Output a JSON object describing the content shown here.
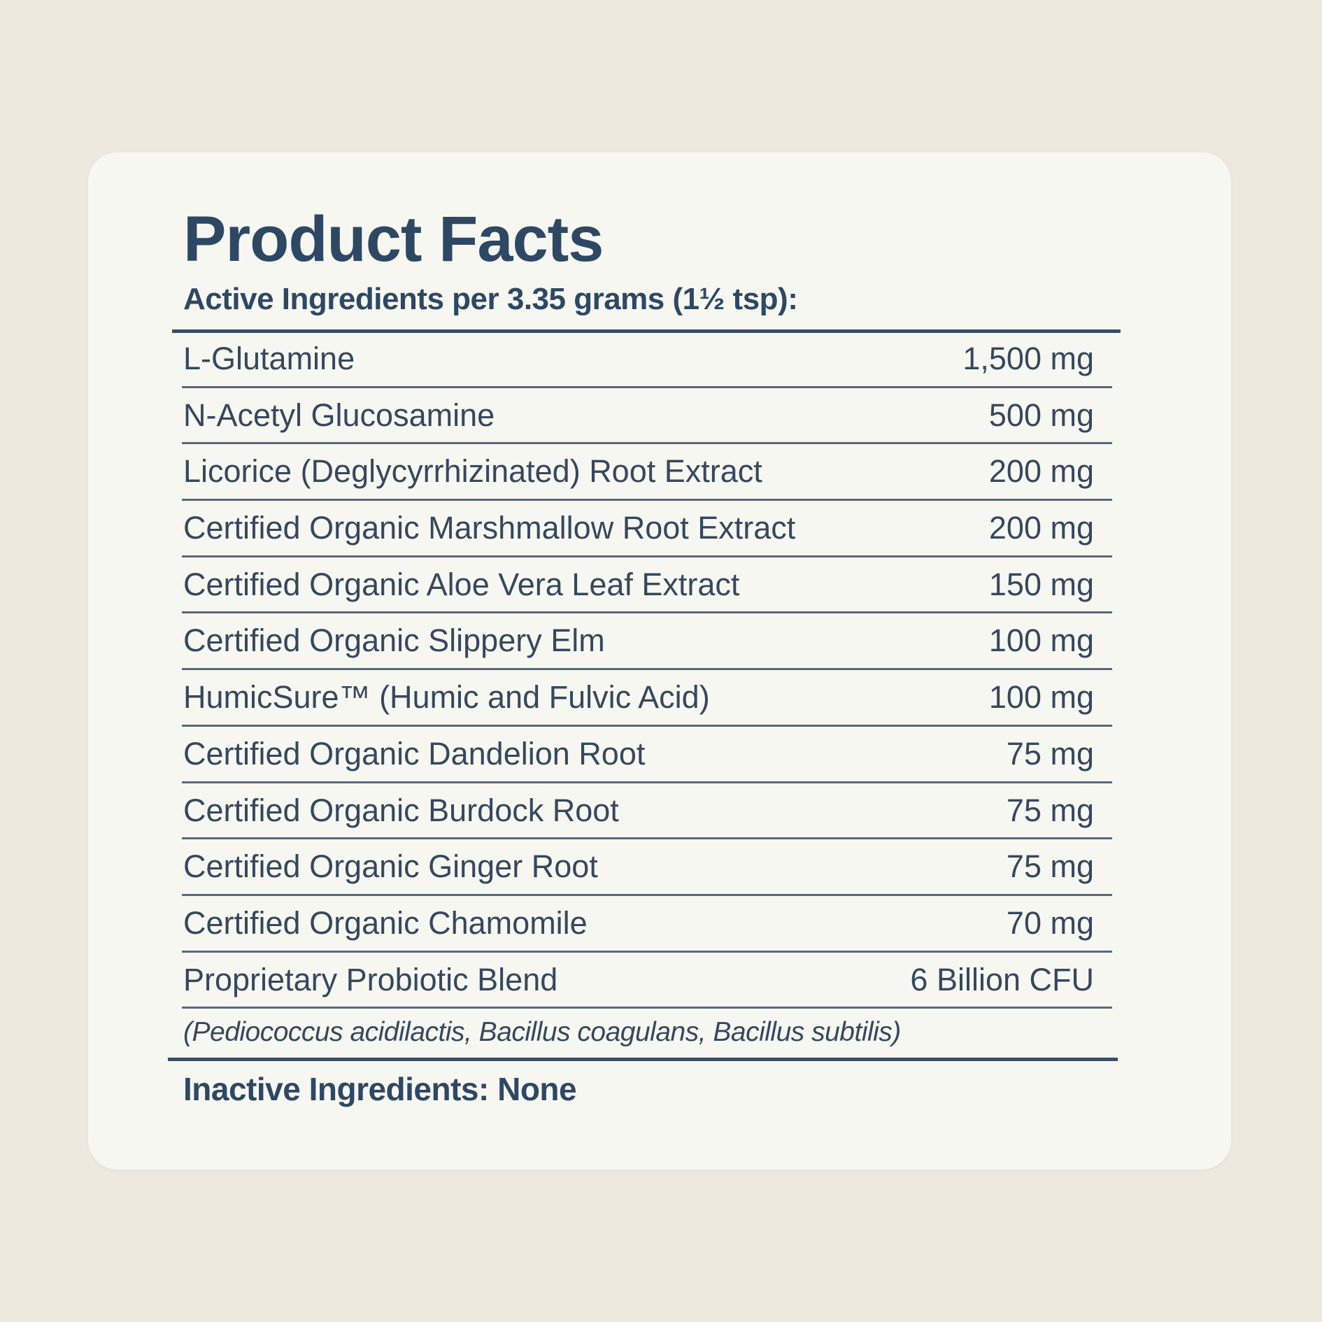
{
  "colors": {
    "background": "#ede9df",
    "card": "#f7f7f2",
    "text": "#2e4864"
  },
  "label": {
    "title": "Product Facts",
    "subtitle": "Active Ingredients per 3.35 grams (1½ tsp):",
    "ingredients": [
      {
        "name": "L-Glutamine",
        "amount": "1,500 mg"
      },
      {
        "name": "N-Acetyl Glucosamine",
        "amount": "500 mg"
      },
      {
        "name": "Licorice (Deglycyrrhizinated) Root Extract",
        "amount": "200 mg"
      },
      {
        "name": "Certified Organic Marshmallow Root Extract",
        "amount": "200 mg"
      },
      {
        "name": "Certified Organic Aloe Vera Leaf Extract",
        "amount": "150 mg"
      },
      {
        "name": "Certified Organic Slippery Elm",
        "amount": "100 mg"
      },
      {
        "name": "HumicSure™ (Humic and Fulvic Acid)",
        "amount": "100 mg"
      },
      {
        "name": "Certified Organic Dandelion Root",
        "amount": "75 mg"
      },
      {
        "name": "Certified Organic Burdock Root",
        "amount": "75 mg"
      },
      {
        "name": "Certified Organic Ginger Root",
        "amount": "75 mg"
      },
      {
        "name": "Certified Organic Chamomile",
        "amount": "70 mg"
      },
      {
        "name": "Proprietary Probiotic Blend",
        "amount": "6  Billion CFU"
      }
    ],
    "probiotic_note": "(Pediococcus acidilactis, Bacillus coagulans, Bacillus subtilis)",
    "inactive": "Inactive Ingredients: None"
  }
}
